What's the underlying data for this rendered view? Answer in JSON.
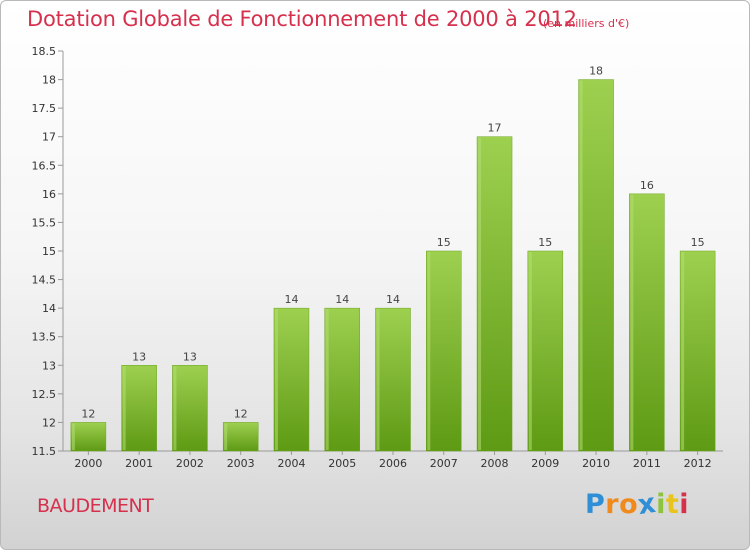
{
  "chart_data": {
    "type": "bar",
    "title": "Dotation Globale de Fonctionnement de 2000 à 2012",
    "subtitle": "(en milliers d'€)",
    "xlabel": "",
    "ylabel": "",
    "categories": [
      "2000",
      "2001",
      "2002",
      "2003",
      "2004",
      "2005",
      "2006",
      "2007",
      "2008",
      "2009",
      "2010",
      "2011",
      "2012"
    ],
    "values": [
      12,
      13,
      13,
      12,
      14,
      14,
      14,
      15,
      17,
      15,
      18,
      16,
      15
    ],
    "ylim": [
      11.5,
      18.5
    ],
    "yticks": [
      "11.5",
      "12",
      "12.5",
      "13",
      "13.5",
      "14",
      "14.5",
      "15",
      "15.5",
      "16",
      "16.5",
      "17",
      "17.5",
      "18",
      "18.5"
    ],
    "grid": false,
    "bar_color": "#8cc43c"
  },
  "commune": "BAUDEMENT",
  "logo": {
    "letters": [
      "P",
      "r",
      "o",
      "x",
      "i",
      "t",
      "i"
    ],
    "colors": [
      "#2e8fd6",
      "#f08a1c",
      "#f08a1c",
      "#2e8fd6",
      "#8cc43c",
      "#e8c41c",
      "#d6304d"
    ]
  },
  "colors": {
    "accent": "#d6304d",
    "bar_top": "#9ed050",
    "bar_bottom": "#5e9a14"
  }
}
